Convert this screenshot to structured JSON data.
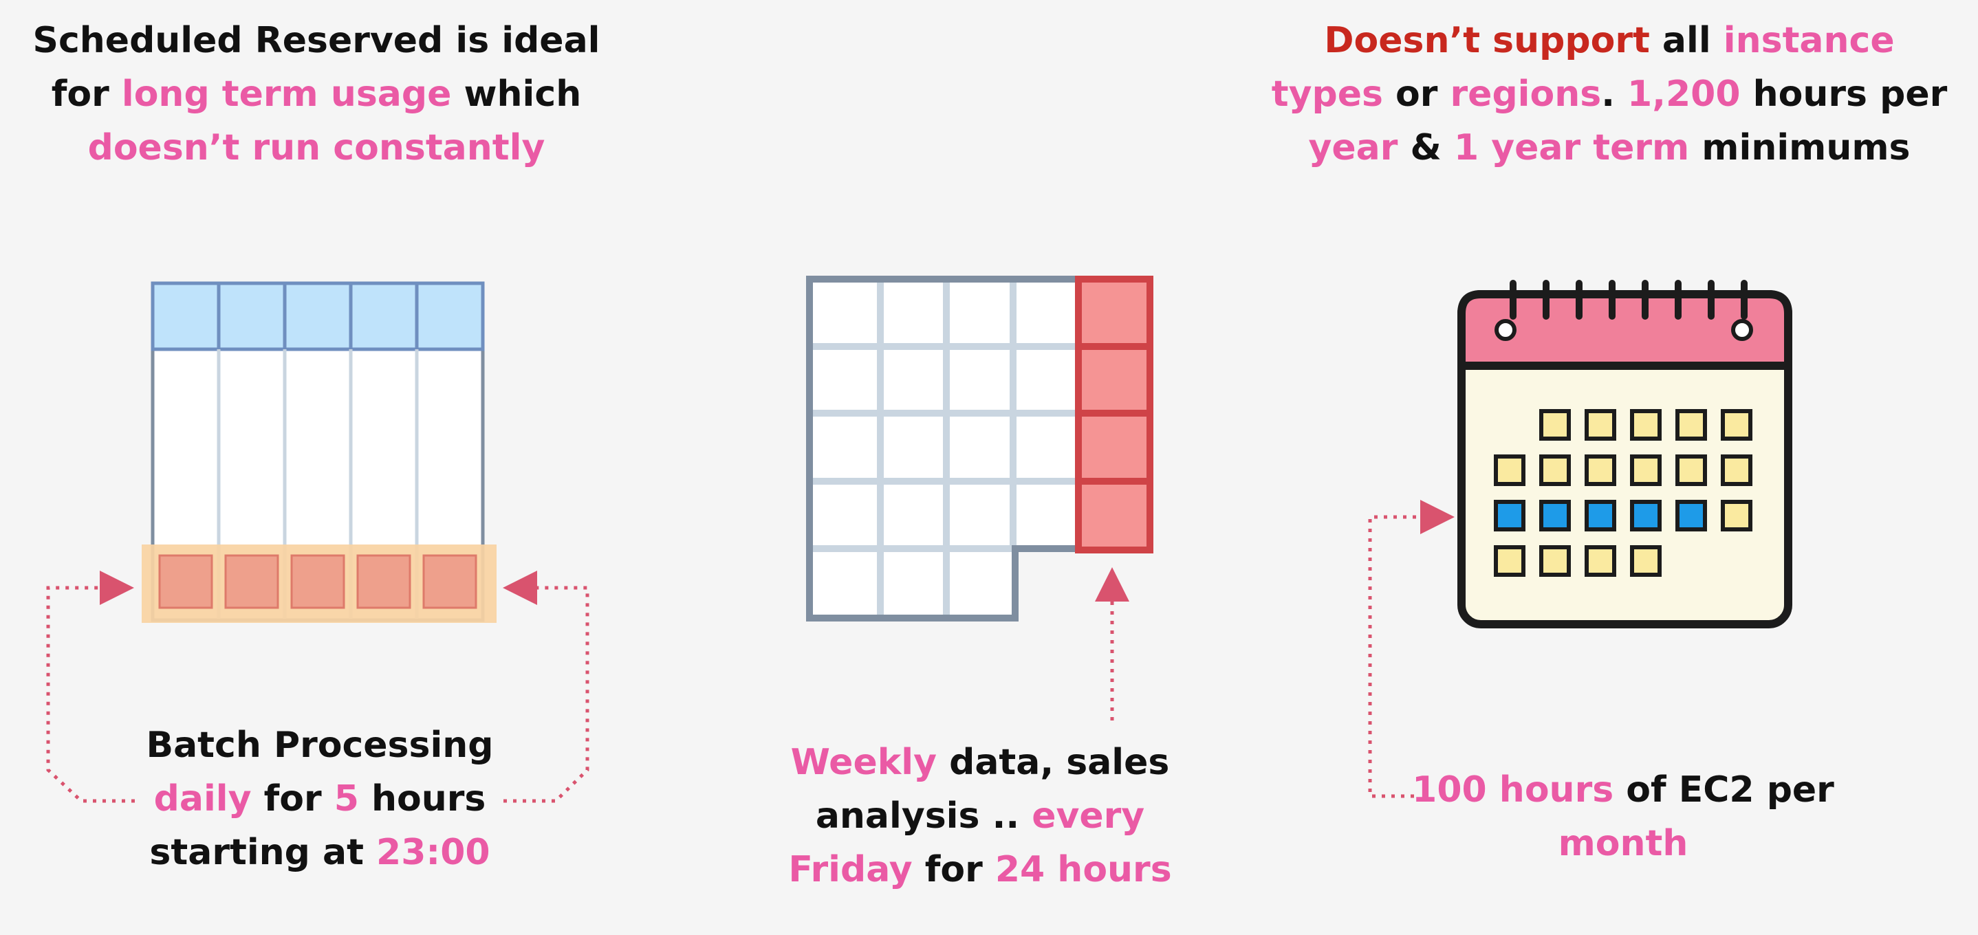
{
  "left": {
    "title": [
      [
        {
          "t": "Scheduled Reserved is ideal",
          "c": "k"
        }
      ],
      [
        {
          "t": "for ",
          "c": "k"
        },
        {
          "t": "long term usage",
          "c": "p"
        },
        {
          "t": " which",
          "c": "k"
        }
      ],
      [
        {
          "t": "doesn’t run constantly",
          "c": "p"
        }
      ]
    ],
    "caption": [
      [
        {
          "t": "Batch Processing",
          "c": "k"
        }
      ],
      [
        {
          "t": "daily",
          "c": "p"
        },
        {
          "t": " for ",
          "c": "k"
        },
        {
          "t": "5",
          "c": "p"
        },
        {
          "t": " hours",
          "c": "k"
        }
      ],
      [
        {
          "t": "starting at ",
          "c": "k"
        },
        {
          "t": "23:00",
          "c": "p"
        }
      ]
    ]
  },
  "middle": {
    "caption": [
      [
        {
          "t": "Weekly",
          "c": "p"
        },
        {
          "t": " data, sales",
          "c": "k"
        }
      ],
      [
        {
          "t": "analysis .. ",
          "c": "k"
        },
        {
          "t": "every",
          "c": "p"
        }
      ],
      [
        {
          "t": "Friday",
          "c": "p"
        },
        {
          "t": " for ",
          "c": "k"
        },
        {
          "t": "24 hours",
          "c": "p"
        }
      ]
    ]
  },
  "right": {
    "title": [
      [
        {
          "t": "Doesn’t support",
          "c": "r"
        },
        {
          "t": " all ",
          "c": "k"
        },
        {
          "t": "instance",
          "c": "p"
        }
      ],
      [
        {
          "t": "types",
          "c": "p"
        },
        {
          "t": " or ",
          "c": "k"
        },
        {
          "t": "regions",
          "c": "p"
        },
        {
          "t": ". ",
          "c": "k"
        },
        {
          "t": "1,200",
          "c": "p"
        },
        {
          "t": " hours per",
          "c": "k"
        }
      ],
      [
        {
          "t": "year",
          "c": "p"
        },
        {
          "t": " & ",
          "c": "k"
        },
        {
          "t": "1 year term",
          "c": "p"
        },
        {
          "t": " minimums",
          "c": "k"
        }
      ]
    ],
    "caption": [
      [
        {
          "t": "100 hours",
          "c": "p"
        },
        {
          "t": " of EC2 per",
          "c": "k"
        }
      ],
      [
        {
          "t": "month",
          "c": "p"
        }
      ]
    ]
  },
  "icons": [
    "daily-grid-icon",
    "weekly-grid-icon",
    "calendar-icon"
  ],
  "colors": {
    "accent_pink": "#ea5aa5",
    "warning_red": "#c8281e",
    "arrow": "#d9536e"
  }
}
